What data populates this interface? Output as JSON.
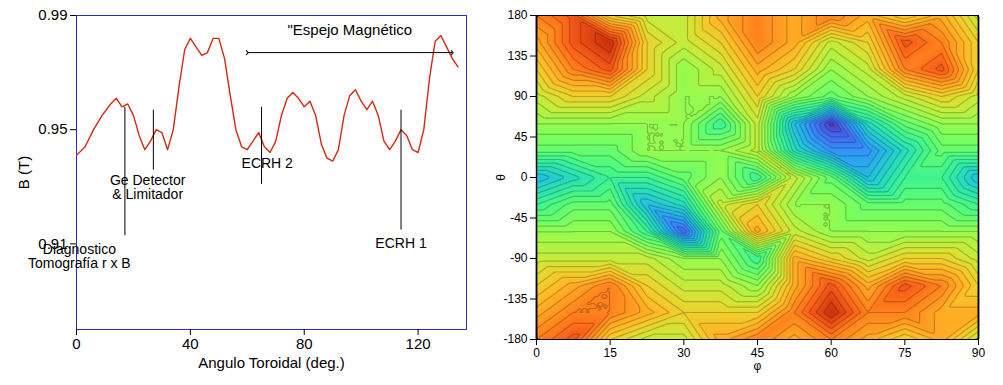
{
  "chart_data": [
    {
      "type": "line",
      "xlabel": "Angulo Toroidal (deg.)",
      "ylabel": "B (T)",
      "color": "#d42a10",
      "xlim": [
        0,
        137
      ],
      "ylim": [
        0.88,
        0.99
      ],
      "xticks": [
        0,
        40,
        80,
        120
      ],
      "yticks": [
        0.91,
        0.95,
        0.99
      ],
      "x": [
        0,
        3,
        6,
        9,
        12,
        14,
        16,
        18,
        20,
        22,
        24,
        26,
        28,
        30,
        32,
        34,
        36,
        38,
        40,
        42,
        44,
        46,
        48,
        50,
        52,
        54,
        56,
        58,
        60,
        62,
        64,
        66,
        68,
        70,
        72,
        74,
        76,
        78,
        80,
        82,
        84,
        86,
        88,
        90,
        92,
        94,
        96,
        98,
        100,
        102,
        104,
        106,
        108,
        110,
        112,
        114,
        116,
        118,
        120,
        122,
        124,
        126,
        128,
        130,
        132,
        134
      ],
      "values": [
        0.941,
        0.944,
        0.95,
        0.955,
        0.959,
        0.961,
        0.958,
        0.959,
        0.955,
        0.948,
        0.943,
        0.946,
        0.95,
        0.949,
        0.943,
        0.95,
        0.965,
        0.978,
        0.982,
        0.979,
        0.976,
        0.977,
        0.982,
        0.982,
        0.975,
        0.962,
        0.95,
        0.944,
        0.943,
        0.946,
        0.949,
        0.944,
        0.942,
        0.946,
        0.955,
        0.961,
        0.963,
        0.961,
        0.958,
        0.96,
        0.955,
        0.945,
        0.94,
        0.939,
        0.943,
        0.955,
        0.962,
        0.964,
        0.96,
        0.957,
        0.96,
        0.955,
        0.946,
        0.943,
        0.946,
        0.95,
        0.948,
        0.943,
        0.942,
        0.95,
        0.968,
        0.981,
        0.983,
        0.979,
        0.975,
        0.972
      ],
      "annotations": [
        {
          "text": "Diagnostico\nTomografía r x B",
          "x": 17,
          "y": [
            0.913,
            0.958
          ],
          "text_x": 1,
          "text_y": 0.91
        },
        {
          "text": "Ge Detector\n& Limitador",
          "x": 27,
          "y": [
            0.936,
            0.957
          ],
          "text_x": 25,
          "text_y": 0.934
        },
        {
          "text": "ECRH 2",
          "x": 65,
          "y": [
            0.931,
            0.958
          ],
          "text_x": 67,
          "text_y": 0.94
        },
        {
          "text": "ECRH 1",
          "x": 114,
          "y": [
            0.915,
            0.957
          ],
          "text_x": 114,
          "text_y": 0.912
        }
      ],
      "span": {
        "text": "\"Espejo Magnético",
        "x": [
          60,
          132
        ],
        "y": 0.977,
        "text_y": 0.983
      }
    },
    {
      "type": "heatmap",
      "xlabel": "φ",
      "ylabel": "θ",
      "color": "turbo",
      "xlim": [
        0,
        90
      ],
      "ylim": [
        -180,
        180
      ],
      "xticks": [
        0,
        15,
        30,
        45,
        60,
        75,
        90
      ],
      "yticks": [
        -180,
        -135,
        -90,
        -45,
        0,
        45,
        90,
        135,
        180
      ],
      "zlim": [
        0.91,
        0.99
      ],
      "x": [
        0,
        7.5,
        15,
        22.5,
        30,
        37.5,
        45,
        52.5,
        60,
        67.5,
        75,
        82.5,
        90
      ],
      "y": [
        -180,
        -150,
        -120,
        -90,
        -60,
        -30,
        0,
        30,
        60,
        90,
        120,
        150,
        180
      ],
      "z": [
        [
          0.97,
          0.975,
          0.96,
          0.955,
          0.955,
          0.965,
          0.97,
          0.965,
          0.97,
          0.965,
          0.96,
          0.965,
          0.955
        ],
        [
          0.965,
          0.97,
          0.97,
          0.965,
          0.96,
          0.96,
          0.96,
          0.97,
          0.98,
          0.97,
          0.97,
          0.965,
          0.965
        ],
        [
          0.96,
          0.965,
          0.97,
          0.96,
          0.955,
          0.955,
          0.95,
          0.965,
          0.975,
          0.965,
          0.975,
          0.97,
          0.96
        ],
        [
          0.955,
          0.955,
          0.955,
          0.955,
          0.95,
          0.95,
          0.94,
          0.965,
          0.96,
          0.955,
          0.96,
          0.96,
          0.955
        ],
        [
          0.95,
          0.95,
          0.95,
          0.94,
          0.92,
          0.945,
          0.965,
          0.955,
          0.95,
          0.95,
          0.95,
          0.95,
          0.95
        ],
        [
          0.94,
          0.945,
          0.945,
          0.93,
          0.935,
          0.955,
          0.96,
          0.95,
          0.95,
          0.945,
          0.945,
          0.945,
          0.94
        ],
        [
          0.93,
          0.935,
          0.94,
          0.94,
          0.945,
          0.95,
          0.94,
          0.955,
          0.945,
          0.93,
          0.94,
          0.94,
          0.93
        ],
        [
          0.945,
          0.945,
          0.945,
          0.95,
          0.95,
          0.95,
          0.955,
          0.935,
          0.925,
          0.925,
          0.935,
          0.945,
          0.945
        ],
        [
          0.95,
          0.95,
          0.95,
          0.95,
          0.95,
          0.94,
          0.955,
          0.93,
          0.915,
          0.935,
          0.945,
          0.95,
          0.95
        ],
        [
          0.955,
          0.96,
          0.96,
          0.955,
          0.95,
          0.95,
          0.96,
          0.95,
          0.945,
          0.95,
          0.955,
          0.96,
          0.955
        ],
        [
          0.96,
          0.97,
          0.975,
          0.96,
          0.95,
          0.955,
          0.965,
          0.96,
          0.95,
          0.955,
          0.97,
          0.975,
          0.96
        ],
        [
          0.965,
          0.975,
          0.98,
          0.96,
          0.955,
          0.96,
          0.97,
          0.965,
          0.955,
          0.96,
          0.975,
          0.97,
          0.96
        ],
        [
          0.97,
          0.975,
          0.96,
          0.955,
          0.955,
          0.965,
          0.97,
          0.965,
          0.97,
          0.965,
          0.96,
          0.965,
          0.955
        ]
      ]
    }
  ]
}
